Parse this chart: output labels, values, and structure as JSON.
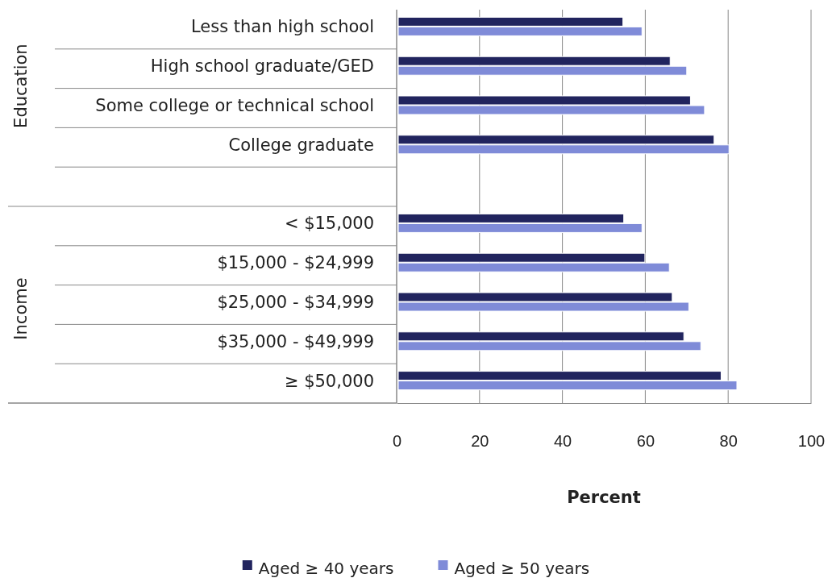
{
  "chart_data": {
    "type": "bar",
    "orientation": "horizontal",
    "xlabel": "Percent",
    "categories": [
      "Less than high school",
      "High school graduate/GED",
      "Some college or technical school",
      "College graduate",
      null,
      "< $15,000",
      "$15,000 - $24,999",
      "$25,000 - $34,999",
      "$35,000 - $49,999",
      "≥ $50,000"
    ],
    "series": [
      {
        "name": "Aged ≥ 40 years",
        "color": "#21245e",
        "values": [
          54.6,
          66.0,
          70.9,
          76.6,
          null,
          54.8,
          59.9,
          66.5,
          69.3,
          78.3
        ]
      },
      {
        "name": "Aged ≥ 50 years",
        "color": "#7f8bd8",
        "values": [
          59.2,
          70.0,
          74.3,
          80.2,
          null,
          59.2,
          65.8,
          70.5,
          73.4,
          82.1
        ]
      }
    ],
    "annotations": [
      "Education",
      "Income"
    ],
    "xlim": [
      0,
      100
    ],
    "xticks": [
      0,
      20,
      40,
      60,
      80,
      100
    ],
    "grid": "x",
    "legend": "bottom"
  }
}
